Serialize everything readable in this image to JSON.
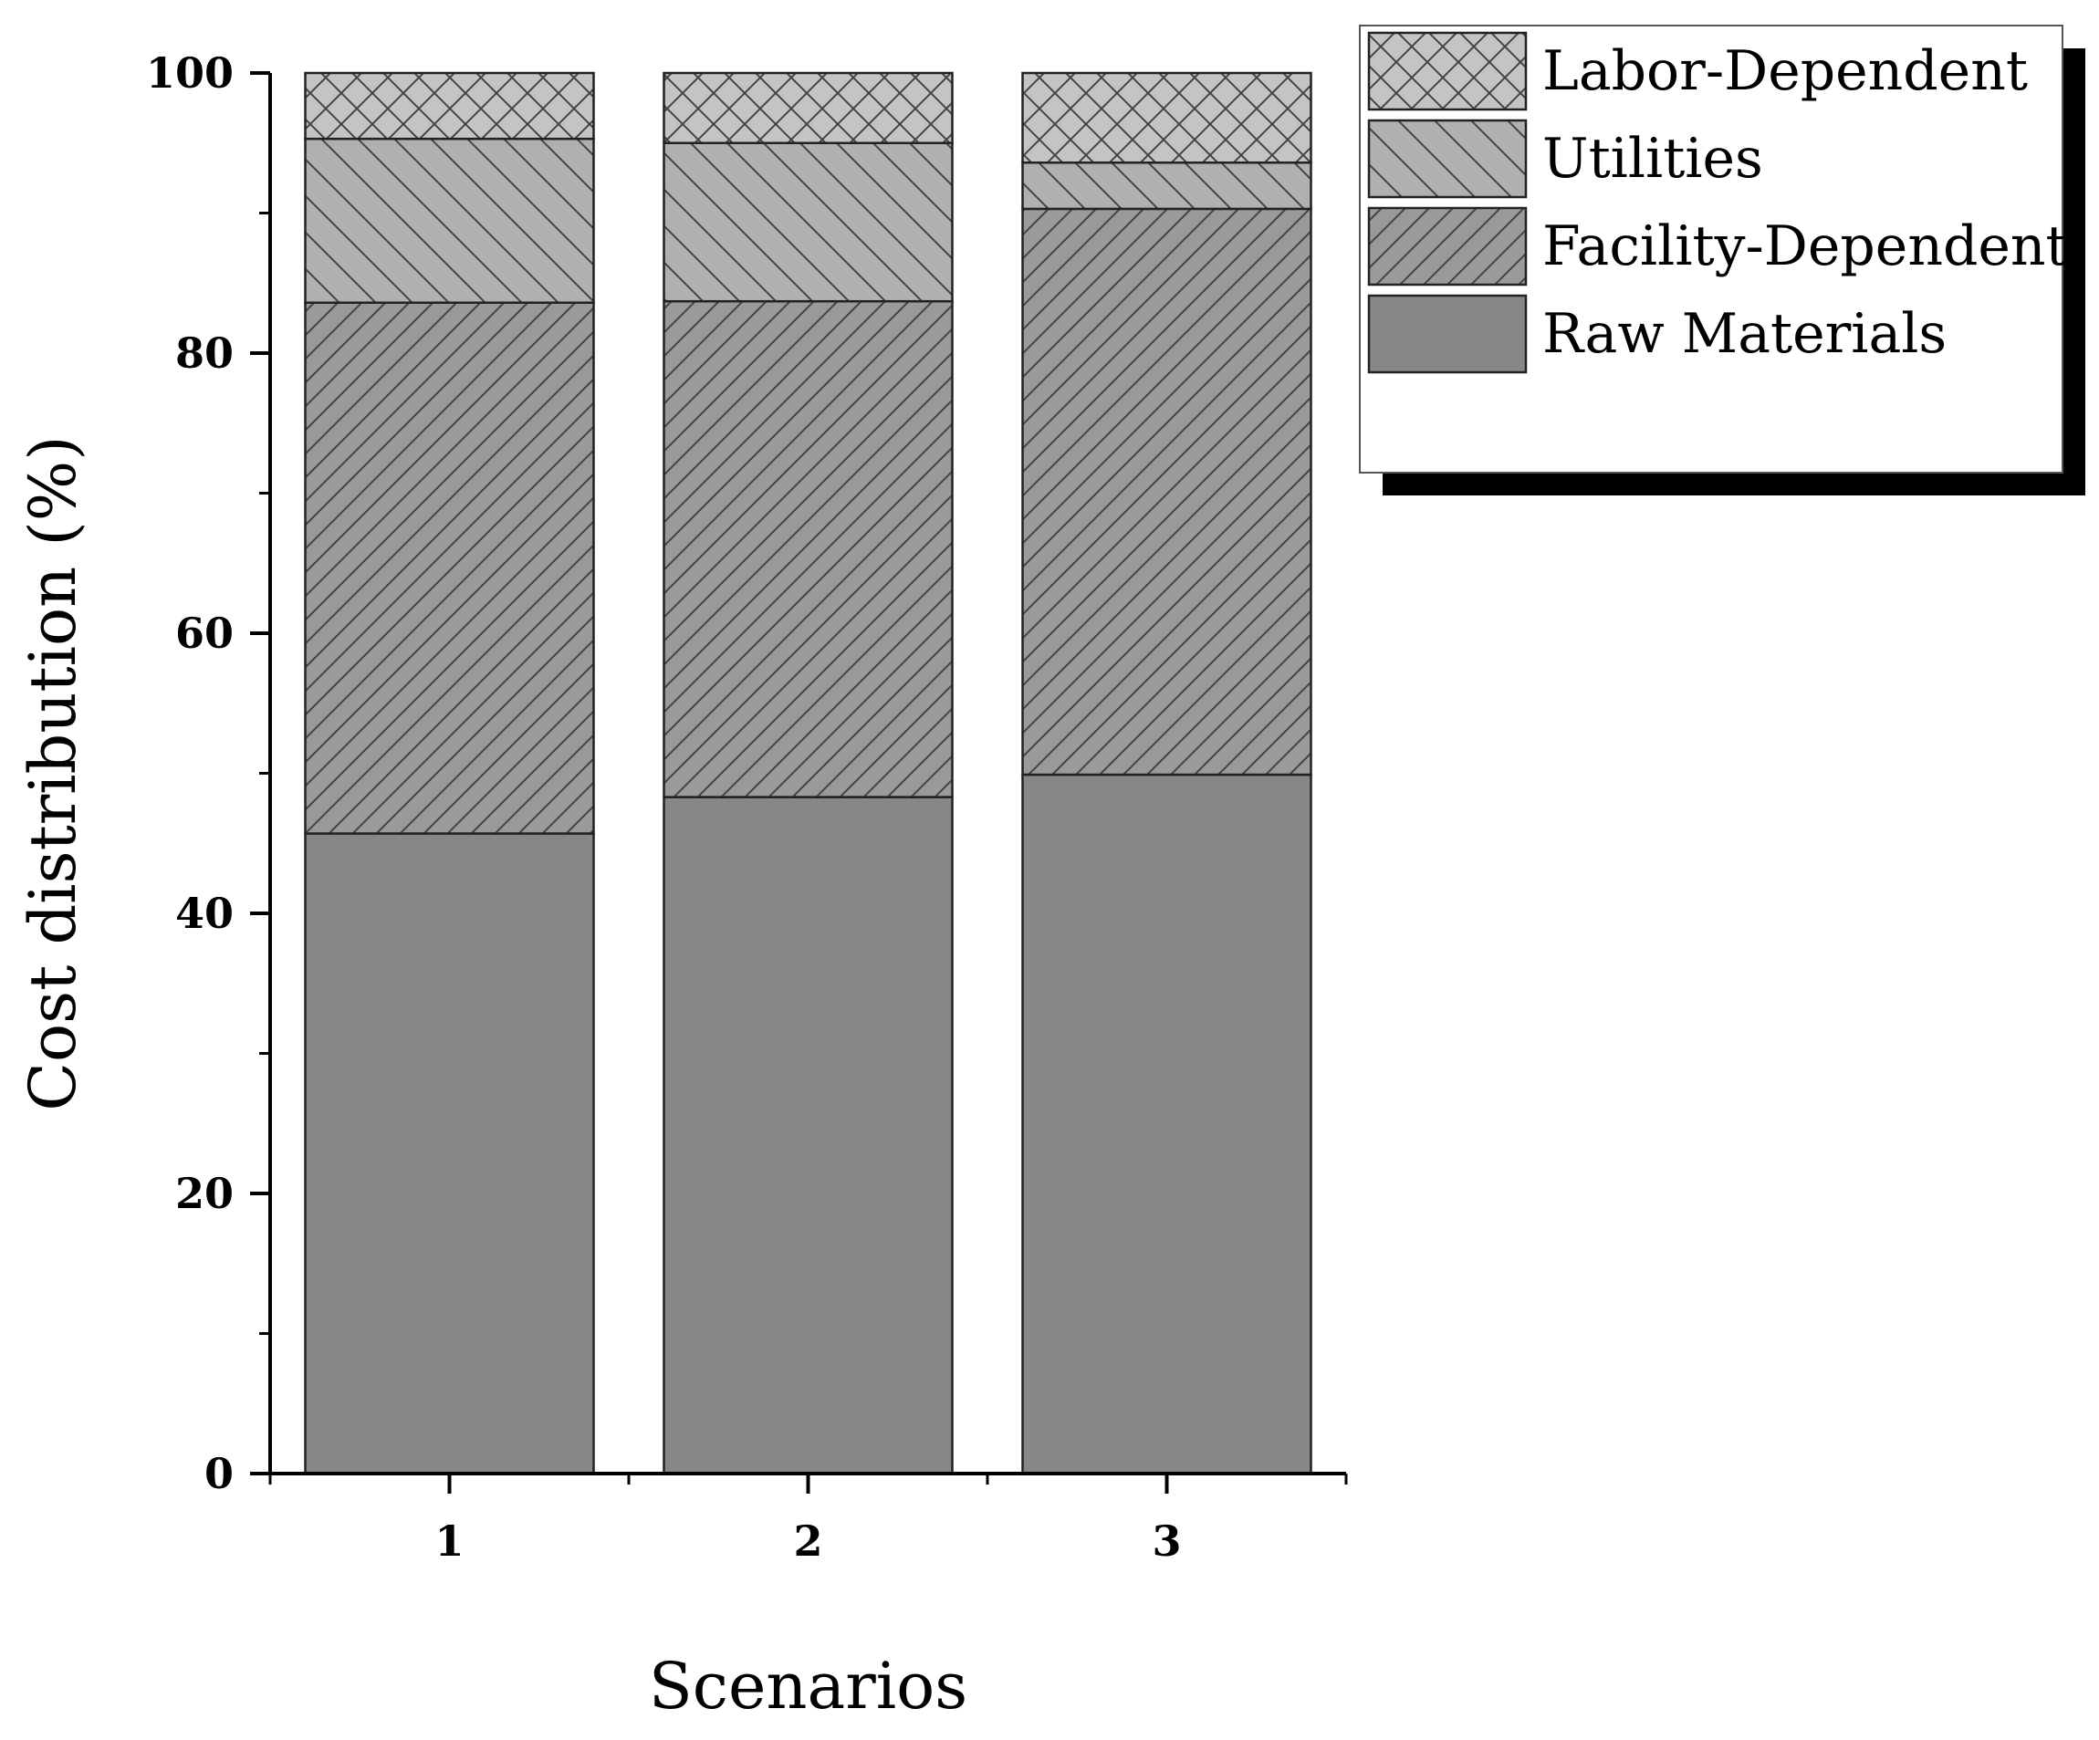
{
  "chart_data": {
    "type": "bar",
    "stacked": true,
    "xlabel": "Scenarios",
    "ylabel": "Cost distribution (%)",
    "ylim": [
      0,
      100
    ],
    "yticks": [
      0,
      20,
      40,
      60,
      80,
      100
    ],
    "categories": [
      "1",
      "2",
      "3"
    ],
    "grid": false,
    "legend_position": "top-right",
    "series": [
      {
        "name": "Raw Materials",
        "values": [
          45.7,
          48.3,
          49.9
        ],
        "color": "#878787",
        "pattern": "solid"
      },
      {
        "name": "Facility-Dependent",
        "values": [
          37.9,
          35.4,
          40.4
        ],
        "color": "#9a9a9a",
        "pattern": "forward-diagonal"
      },
      {
        "name": "Utilities",
        "values": [
          11.7,
          11.3,
          3.3
        ],
        "color": "#b0b0b0",
        "pattern": "back-diagonal"
      },
      {
        "name": "Labor-Dependent",
        "values": [
          4.7,
          5.0,
          6.4
        ],
        "color": "#c4c4c4",
        "pattern": "crosshatch"
      }
    ]
  }
}
